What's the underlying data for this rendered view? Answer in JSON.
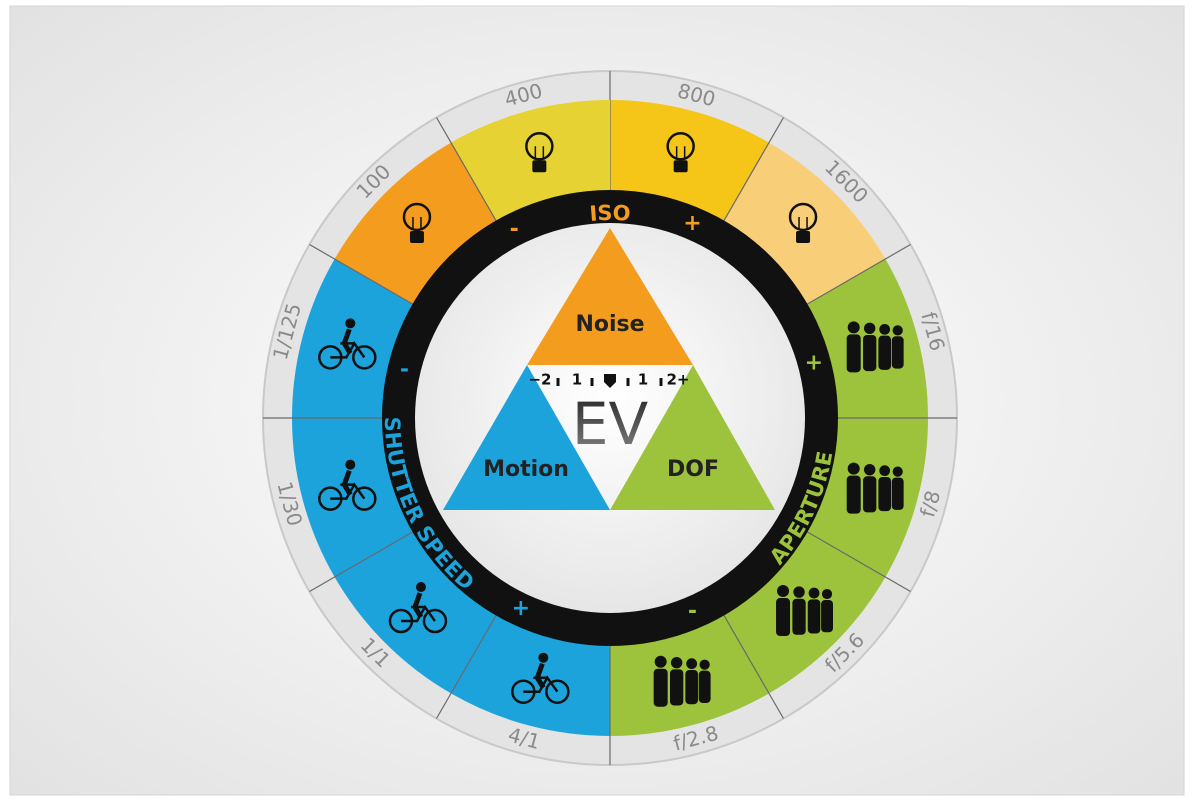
{
  "wheel": {
    "segments": [
      {
        "label": "800"
      },
      {
        "label": "1600"
      },
      {
        "label": "f/16"
      },
      {
        "label": "f/8"
      },
      {
        "label": "f/5.6"
      },
      {
        "label": "f/2.8"
      },
      {
        "label": "4/1"
      },
      {
        "label": "1/1"
      },
      {
        "label": "1/30"
      },
      {
        "label": "1/125"
      },
      {
        "label": "100"
      },
      {
        "label": "400"
      }
    ]
  },
  "rings": [
    {
      "label": "ISO",
      "minus": "-",
      "plus": "+"
    },
    {
      "label": "APERTURE",
      "minus": "-",
      "plus": "+"
    },
    {
      "label": "SHUTTER SPEED",
      "minus": "-",
      "plus": "+"
    }
  ],
  "triangle": {
    "top": "Noise",
    "left": "Motion",
    "right": "DOF",
    "center": "EV",
    "scale": [
      "−2",
      "1",
      "1",
      "2+"
    ]
  }
}
